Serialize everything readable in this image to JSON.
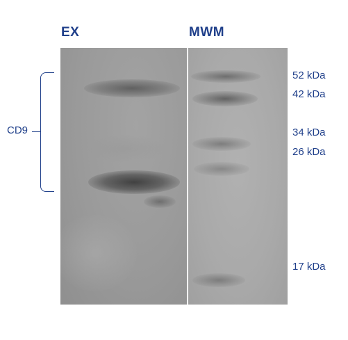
{
  "lanes": {
    "ex_label": "EX",
    "mwm_label": "MWM"
  },
  "markers": [
    {
      "label": "52 kDa"
    },
    {
      "label": "42 kDa"
    },
    {
      "label": "34 kDa"
    },
    {
      "label": "26 kDa"
    },
    {
      "label": "17 kDa"
    }
  ],
  "bracket": {
    "label": "CD9"
  },
  "colors": {
    "label_blue": "#1f3f8a",
    "band_dark": "#4e4e4e"
  }
}
